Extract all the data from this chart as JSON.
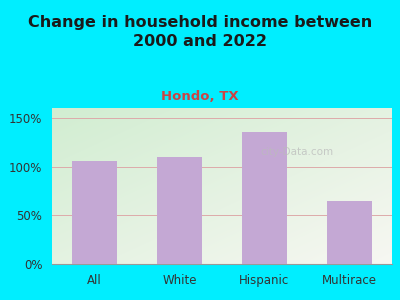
{
  "title": "Change in household income between\n2000 and 2022",
  "subtitle": "Hondo, TX",
  "categories": [
    "All",
    "White",
    "Hispanic",
    "Multirace"
  ],
  "values": [
    106,
    110,
    135,
    65
  ],
  "bar_color": "#c4a8d4",
  "title_fontsize": 11.5,
  "subtitle_fontsize": 9.5,
  "subtitle_color": "#cc4444",
  "background_outer": "#00eeff",
  "ylim": [
    0,
    160
  ],
  "yticks": [
    0,
    50,
    100,
    150
  ],
  "ytick_labels": [
    "0%",
    "50%",
    "100%",
    "150%"
  ],
  "watermark": "city-Data.com",
  "grid_color": "#ddaaaa",
  "tick_label_fontsize": 8.5
}
